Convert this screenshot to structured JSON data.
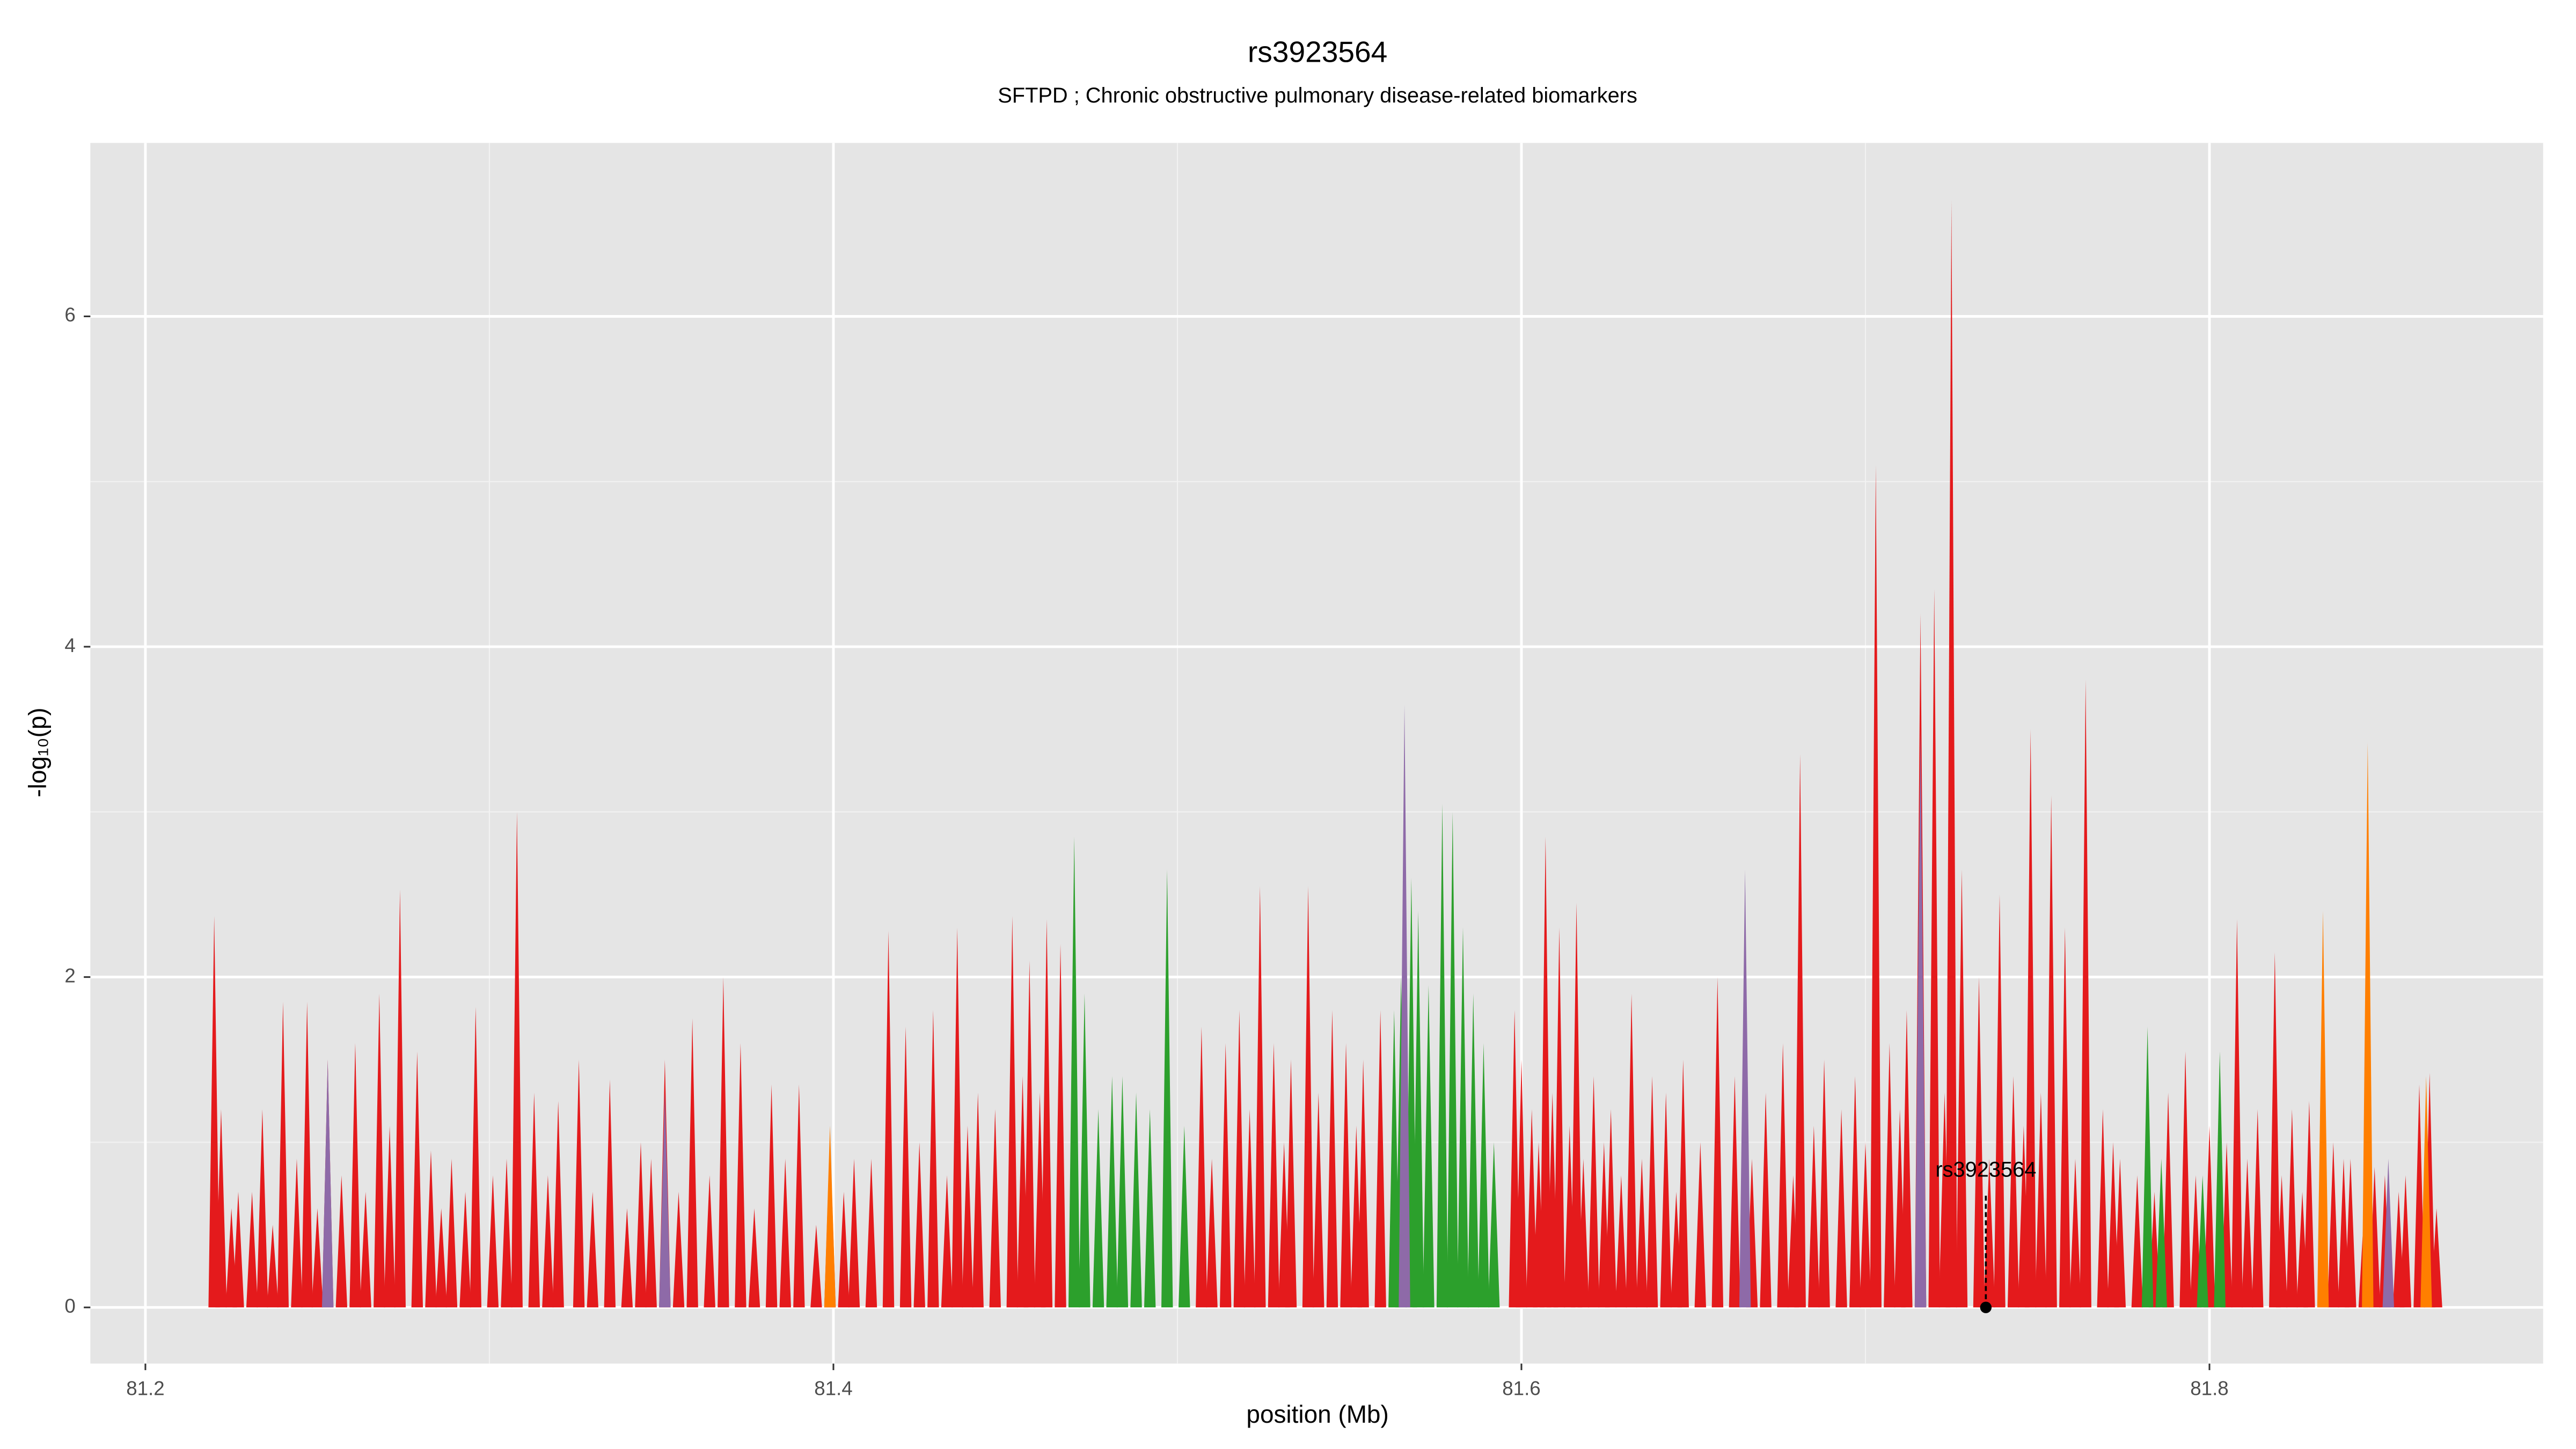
{
  "chart_data": {
    "type": "spike",
    "title": "rs3923564",
    "subtitle": "SFTPD ; Chronic obstructive pulmonary disease-related biomarkers",
    "xlabel": "position (Mb)",
    "ylabel": "-log₁₀(p)",
    "xlim": [
      81.184,
      81.897
    ],
    "ylim": [
      -0.34,
      7.05
    ],
    "xticks": [
      81.2,
      81.4,
      81.6,
      81.8
    ],
    "yticks": [
      0,
      2,
      4,
      6
    ],
    "xminor": [
      81.3,
      81.5,
      81.7
    ],
    "yminor": [
      1,
      3,
      5
    ],
    "grid": true,
    "series": [
      {
        "name": "red",
        "color": "#e41a1c",
        "x": [
          81.22,
          81.222,
          81.227,
          81.234,
          81.24,
          81.247,
          81.253,
          81.261,
          81.268,
          81.274,
          81.279,
          81.283,
          81.289,
          81.296,
          81.301,
          81.308,
          81.313,
          81.32,
          81.326,
          81.335,
          81.344,
          81.351,
          81.359,
          81.368,
          81.373,
          81.382,
          81.39,
          81.399,
          81.406,
          81.416,
          81.421,
          81.429,
          81.436,
          81.442,
          81.452,
          81.457,
          81.462,
          81.466,
          81.507,
          81.514,
          81.518,
          81.524,
          81.528,
          81.533,
          81.538,
          81.545,
          81.549,
          81.554,
          81.559,
          81.598,
          81.607,
          81.611,
          81.616,
          81.621,
          81.626,
          81.632,
          81.638,
          81.642,
          81.647,
          81.657,
          81.662,
          81.671,
          81.676,
          81.681,
          81.688,
          81.693,
          81.697,
          81.703,
          81.707,
          81.712,
          81.716,
          81.72,
          81.725,
          81.728,
          81.733,
          81.739,
          81.743,
          81.748,
          81.754,
          81.758,
          81.764,
          81.769,
          81.774,
          81.779,
          81.788,
          81.793,
          81.8,
          81.808,
          81.814,
          81.819,
          81.824,
          81.829,
          81.836,
          81.841,
          81.848,
          81.857,
          81.861,
          81.864,
          81.225,
          81.231,
          81.237,
          81.244,
          81.25,
          81.257,
          81.264,
          81.271,
          81.286,
          81.293,
          81.305,
          81.317,
          81.33,
          81.34,
          81.347,
          81.355,
          81.364,
          81.377,
          81.386,
          81.395,
          81.403,
          81.411,
          81.425,
          81.433,
          81.439,
          81.447,
          81.455,
          81.46,
          81.51,
          81.521,
          81.531,
          81.541,
          81.552,
          81.6,
          81.603,
          81.605,
          81.609,
          81.614,
          81.618,
          81.624,
          81.629,
          81.635,
          81.645,
          81.652,
          81.667,
          81.679,
          81.685,
          81.7,
          81.71,
          81.723,
          81.736,
          81.746,
          81.751,
          81.761,
          81.772,
          81.784,
          81.796,
          81.805,
          81.811,
          81.821,
          81.827,
          81.839,
          81.845,
          81.851,
          81.855,
          81.866
        ],
        "values": [
          2.37,
          1.2,
          0.7,
          1.2,
          1.85,
          1.85,
          1.5,
          1.6,
          1.9,
          2.53,
          1.55,
          0.95,
          0.9,
          1.82,
          0.8,
          3.0,
          1.3,
          1.25,
          1.5,
          1.38,
          1.0,
          1.5,
          1.75,
          2.0,
          1.6,
          1.35,
          1.35,
          1.05,
          0.9,
          2.28,
          1.7,
          1.8,
          2.3,
          1.3,
          2.37,
          2.1,
          2.35,
          2.2,
          1.7,
          1.6,
          1.8,
          2.55,
          1.6,
          1.5,
          2.55,
          1.8,
          1.6,
          1.5,
          1.8,
          1.8,
          2.85,
          2.3,
          2.45,
          1.4,
          1.2,
          1.9,
          1.4,
          1.3,
          1.5,
          2.0,
          1.4,
          1.3,
          1.6,
          3.35,
          1.5,
          1.2,
          1.4,
          5.1,
          1.6,
          1.8,
          4.2,
          4.35,
          6.7,
          2.65,
          2.0,
          2.5,
          1.4,
          3.5,
          3.1,
          2.3,
          3.8,
          1.2,
          0.9,
          0.8,
          1.3,
          1.55,
          1.1,
          2.35,
          1.2,
          2.15,
          1.2,
          1.25,
          1.0,
          0.9,
          0.85,
          0.8,
          1.35,
          1.42,
          0.6,
          0.7,
          0.5,
          0.9,
          0.6,
          0.8,
          0.7,
          1.1,
          0.6,
          0.7,
          0.9,
          0.8,
          0.7,
          0.6,
          0.9,
          0.7,
          0.8,
          0.6,
          0.9,
          0.5,
          0.7,
          0.9,
          1.0,
          0.8,
          1.1,
          1.2,
          1.4,
          1.3,
          0.9,
          1.2,
          1.0,
          1.3,
          1.1,
          1.5,
          1.2,
          1.0,
          1.3,
          1.1,
          0.9,
          1.0,
          0.8,
          0.9,
          0.7,
          1.0,
          0.9,
          0.8,
          1.1,
          1.0,
          1.2,
          1.3,
          0.9,
          1.1,
          1.3,
          0.9,
          1.0,
          0.7,
          0.8,
          1.0,
          0.9,
          0.8,
          0.7,
          0.9,
          0.6,
          0.8,
          0.7,
          0.6
        ]
      },
      {
        "name": "green",
        "color": "#2ca02c",
        "x": [
          81.47,
          81.473,
          81.477,
          81.481,
          81.484,
          81.488,
          81.492,
          81.497,
          81.502,
          81.563,
          81.565,
          81.568,
          81.57,
          81.573,
          81.577,
          81.58,
          81.583,
          81.586,
          81.589,
          81.592,
          81.782,
          81.786,
          81.798,
          81.803
        ],
        "values": [
          2.85,
          1.9,
          1.2,
          1.4,
          1.4,
          1.3,
          1.2,
          2.65,
          1.1,
          1.8,
          2.0,
          2.6,
          2.4,
          1.95,
          3.05,
          3.0,
          2.3,
          1.9,
          1.6,
          1.0,
          1.7,
          0.9,
          0.8,
          1.55
        ]
      },
      {
        "name": "purple",
        "color": "#8e6aa8",
        "x": [
          81.253,
          81.351,
          81.566,
          81.665,
          81.716,
          81.852
        ],
        "values": [
          1.5,
          1.3,
          3.65,
          2.65,
          3.5,
          0.9
        ]
      },
      {
        "name": "orange",
        "color": "#ff7f00",
        "x": [
          81.399,
          81.833,
          81.846,
          81.863
        ],
        "values": [
          1.1,
          2.4,
          3.42,
          1.4
        ]
      }
    ],
    "annotation": {
      "label": "rs3923564",
      "x": 81.735,
      "y": 0
    }
  }
}
